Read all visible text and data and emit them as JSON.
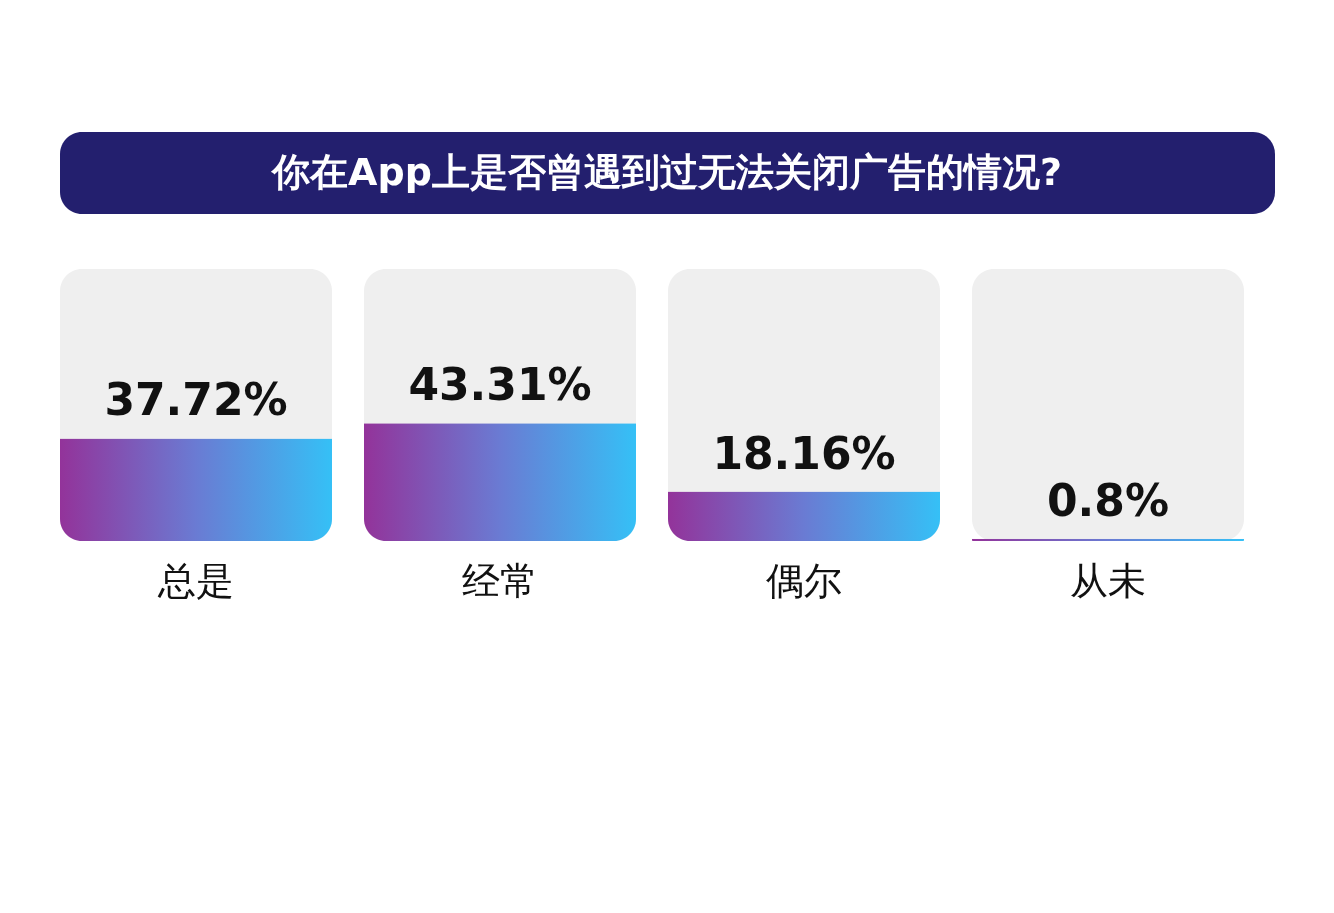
{
  "chart_data": {
    "type": "bar",
    "title": "你在App上是否曾遇到过无法关闭广告的情况?",
    "categories": [
      "总是",
      "经常",
      "偶尔",
      "从未"
    ],
    "values": [
      37.72,
      43.31,
      18.16,
      0.8
    ],
    "value_labels": [
      "37.72%",
      "43.31%",
      "18.16%",
      "0.8%"
    ],
    "color": "#6a7bd3",
    "ylim": [
      0,
      100
    ],
    "tick_labels": "x",
    "grid": false
  }
}
